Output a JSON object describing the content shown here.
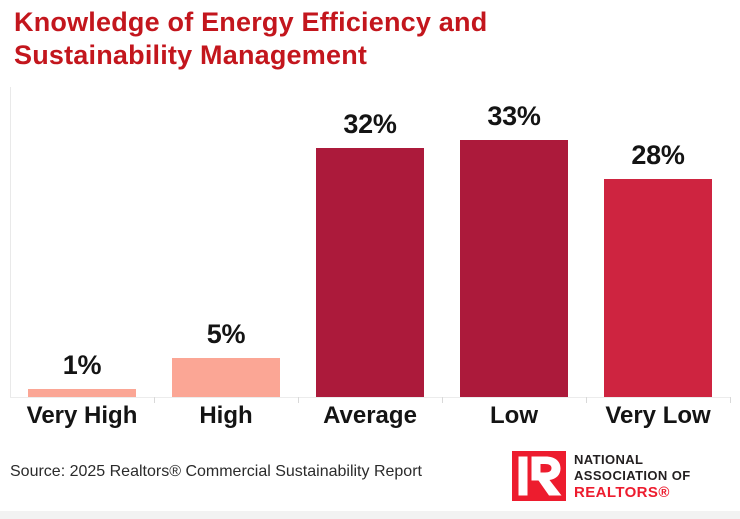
{
  "header": {
    "title_line1": "Knowledge of Energy Efficiency and",
    "title_line2": "Sustainability Management",
    "title_color": "#C3161D"
  },
  "chart_data": {
    "type": "bar",
    "title": "Knowledge of Energy Efficiency and Sustainability Management",
    "categories": [
      "Very High",
      "High",
      "Average",
      "Low",
      "Very Low"
    ],
    "values": [
      1,
      5,
      32,
      33,
      28
    ],
    "unit": "%",
    "value_labels": [
      "1%",
      "5%",
      "32%",
      "33%",
      "28%"
    ],
    "bar_colors": [
      "#FBA695",
      "#FBA695",
      "#AC1A3B",
      "#AC1A3B",
      "#CE2440"
    ],
    "value_label_color": "#141414",
    "xlabel": "",
    "ylabel": "",
    "ylim": [
      0,
      40
    ],
    "grid": false,
    "legend": false,
    "axis_color": "#E9E9E9"
  },
  "footer": {
    "source": "Source: 2025 Realtors® Commercial Sustainability Report",
    "logo": {
      "icon": "nar-block-r-icon",
      "line1": "NATIONAL",
      "line2": "ASSOCIATION OF",
      "line3": "REALTORS®",
      "red": "#ED1C2E",
      "text_color": "#231F20"
    }
  }
}
